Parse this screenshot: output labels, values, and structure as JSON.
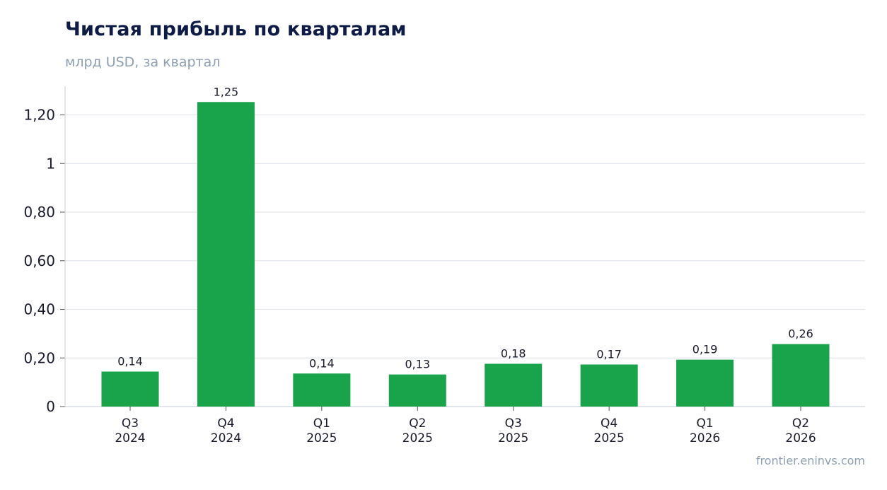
{
  "header": {
    "title": "Чистая прибыль по кварталам",
    "subtitle": "млрд USD, за квартал"
  },
  "footer": {
    "source": "frontier.eninvs.com"
  },
  "colors": {
    "bar": "#19a34a",
    "grid": "#e3e6ee",
    "axis": "#cfd4dc",
    "title": "#0d1b45",
    "muted": "#8e9fb3"
  },
  "chart_data": {
    "type": "bar",
    "categories": [
      [
        "Q3",
        "2024"
      ],
      [
        "Q4",
        "2024"
      ],
      [
        "Q1",
        "2025"
      ],
      [
        "Q2",
        "2025"
      ],
      [
        "Q3",
        "2025"
      ],
      [
        "Q4",
        "2025"
      ],
      [
        "Q1",
        "2026"
      ],
      [
        "Q2",
        "2026"
      ]
    ],
    "values": [
      0.144,
      1.253,
      0.136,
      0.132,
      0.176,
      0.173,
      0.193,
      0.257
    ],
    "data_labels": [
      "0,14",
      "1,25",
      "0,14",
      "0,13",
      "0,18",
      "0,17",
      "0,19",
      "0,26"
    ],
    "yticks": [
      0,
      0.2,
      0.4,
      0.6,
      0.8,
      1.0,
      1.2
    ],
    "ytick_labels": [
      "0",
      "0,20",
      "0,40",
      "0,60",
      "0,80",
      "1",
      "1,20"
    ],
    "ylim": [
      0,
      1.32
    ],
    "grid": true,
    "xlabel": "",
    "ylabel": ""
  }
}
